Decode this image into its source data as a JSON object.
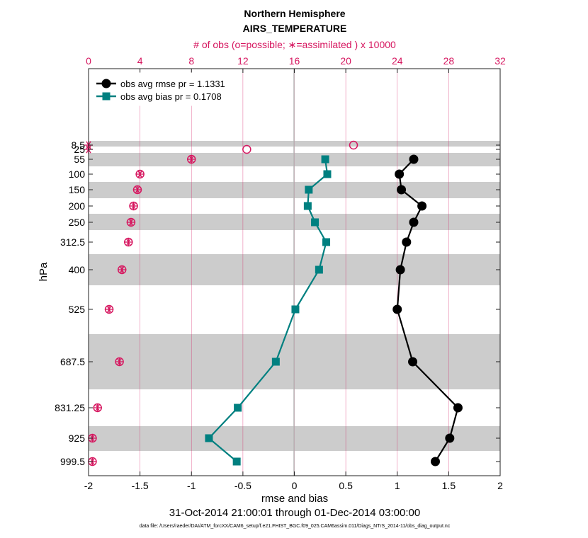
{
  "chart_data": {
    "type": "line",
    "title": "Northern Hemisphere",
    "subtitle": "AIRS_TEMPERATURE",
    "top_axis_label": "# of obs (o=possible; ∗=assimilated ) x 10000",
    "xlabel": "rmse and bias",
    "ylabel": "hPa",
    "date_range": "31-Oct-2014 21:00:01 through 01-Dec-2014 03:00:00",
    "data_file": "data file: /Users/raeder/DAI/ATM_forcXX/CAM6_setup/f.e21.FHIST_BGC.f09_025.CAM6assim.011/Diags_NTrS_2014-11/obs_diag_output.nc",
    "xlim": [
      -2,
      2
    ],
    "x_ticks": [
      "-2",
      "-1.5",
      "-1",
      "-0.5",
      "0",
      "0.5",
      "1",
      "1.5",
      "2"
    ],
    "top_xlim": [
      0,
      32
    ],
    "top_ticks": [
      "0",
      "4",
      "8",
      "12",
      "16",
      "20",
      "24",
      "28",
      "32"
    ],
    "levels": [
      "8.5",
      "25",
      "55",
      "100",
      "150",
      "200",
      "250",
      "312.5",
      "400",
      "525",
      "687.5",
      "831.25",
      "925",
      "999.5"
    ],
    "series": [
      {
        "name": "obs avg rmse pr = 1.1331",
        "color": "#000000",
        "levels": [
          "55",
          "100",
          "150",
          "200",
          "250",
          "312.5",
          "400",
          "525",
          "687.5",
          "831.25",
          "925",
          "999.5"
        ],
        "values": [
          1.16,
          1.02,
          1.04,
          1.24,
          1.16,
          1.09,
          1.03,
          1.0,
          1.15,
          1.59,
          1.51,
          1.37
        ]
      },
      {
        "name": "obs avg bias pr = 0.1708",
        "color": "#008080",
        "levels": [
          "55",
          "100",
          "150",
          "200",
          "250",
          "312.5",
          "400",
          "525",
          "687.5",
          "831.25",
          "925",
          "999.5"
        ],
        "values": [
          0.3,
          0.32,
          0.14,
          0.13,
          0.2,
          0.31,
          0.24,
          0.01,
          -0.18,
          -0.55,
          -0.83,
          -0.56
        ]
      }
    ],
    "obs_counts": {
      "color": "#d6165f",
      "levels": [
        "8.5",
        "25",
        "55",
        "100",
        "150",
        "200",
        "250",
        "312.5",
        "400",
        "525",
        "687.5",
        "831.25",
        "925",
        "999.5"
      ],
      "possible": [
        20.6,
        12.3,
        8.0,
        4.0,
        3.8,
        3.5,
        3.3,
        3.1,
        2.6,
        1.6,
        2.4,
        0.7,
        0.3,
        0.3
      ],
      "assimilated": [
        0.0,
        0.0,
        8.0,
        4.0,
        3.8,
        3.5,
        3.3,
        3.1,
        2.6,
        1.6,
        2.4,
        0.7,
        0.3,
        0.3
      ]
    },
    "grid": true,
    "legend_position": "top-left"
  }
}
